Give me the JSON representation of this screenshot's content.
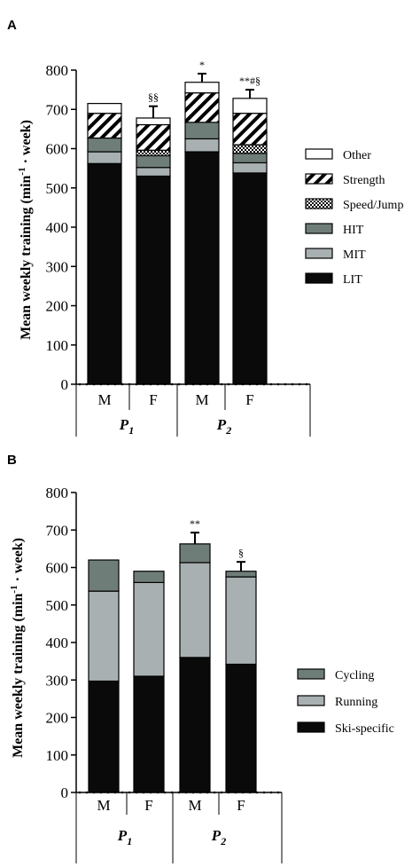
{
  "colors": {
    "black": "#0a0a0a",
    "dark_gray": "#6f7d78",
    "light_gray": "#a9b0b2",
    "white": "#ffffff"
  },
  "chart_data": [
    {
      "panel_label": "A",
      "type": "bar",
      "stacked": true,
      "ylabel_main": "Mean weekly training (min",
      "ylabel_sup": "-1",
      "ylabel_end": " · week)",
      "ylim": [
        0,
        800
      ],
      "yticks": [
        "0",
        "100",
        "200",
        "300",
        "400",
        "500",
        "600",
        "700",
        "800"
      ],
      "ytick_values": [
        0,
        100,
        200,
        300,
        400,
        500,
        600,
        700,
        800
      ],
      "categories": [
        "M",
        "F",
        "M",
        "F"
      ],
      "groups": [
        {
          "base": "P",
          "sub": "1"
        },
        {
          "base": "P",
          "sub": "2"
        }
      ],
      "series": [
        {
          "name": "LIT",
          "pattern": "black",
          "values": [
            562,
            530,
            592,
            538
          ]
        },
        {
          "name": "MIT",
          "pattern": "light",
          "values": [
            30,
            22,
            33,
            26
          ]
        },
        {
          "name": "HIT",
          "pattern": "dark",
          "values": [
            35,
            30,
            42,
            24
          ]
        },
        {
          "name": "Speed/Jump",
          "pattern": "checker",
          "values": [
            0,
            14,
            0,
            22
          ]
        },
        {
          "name": "Strength",
          "pattern": "hatch",
          "values": [
            63,
            65,
            75,
            80
          ]
        },
        {
          "name": "Other",
          "pattern": "white",
          "values": [
            25,
            17,
            27,
            38
          ]
        }
      ],
      "totals": [
        715,
        678,
        769,
        728
      ],
      "error_bars": [
        0,
        30,
        22,
        22
      ],
      "annotations": [
        "",
        "§§",
        "*",
        "**#§"
      ],
      "legend_order": [
        "Other",
        "Strength",
        "Speed/Jump",
        "HIT",
        "MIT",
        "LIT"
      ],
      "legend_position": "right",
      "grid": false
    },
    {
      "panel_label": "B",
      "type": "bar",
      "stacked": true,
      "ylabel_main": "Mean weekly training (min",
      "ylabel_sup": "-1",
      "ylabel_end": " · week)",
      "ylim": [
        0,
        800
      ],
      "yticks": [
        "0",
        "100",
        "200",
        "300",
        "400",
        "500",
        "600",
        "700",
        "800"
      ],
      "ytick_values": [
        0,
        100,
        200,
        300,
        400,
        500,
        600,
        700,
        800
      ],
      "categories": [
        "M",
        "F",
        "M",
        "F"
      ],
      "groups": [
        {
          "base": "P",
          "sub": "1"
        },
        {
          "base": "P",
          "sub": "2"
        }
      ],
      "series": [
        {
          "name": "Ski-specific",
          "pattern": "black",
          "values": [
            297,
            310,
            360,
            342
          ]
        },
        {
          "name": "Running",
          "pattern": "light",
          "values": [
            240,
            250,
            253,
            233
          ]
        },
        {
          "name": "Cycling",
          "pattern": "dark",
          "values": [
            83,
            30,
            50,
            15
          ]
        }
      ],
      "totals": [
        620,
        590,
        663,
        590
      ],
      "error_bars": [
        0,
        0,
        30,
        25
      ],
      "annotations": [
        "",
        "",
        "**",
        "§"
      ],
      "legend_order": [
        "Cycling",
        "Running",
        "Ski-specific"
      ],
      "legend_position": "right",
      "grid": false
    }
  ]
}
